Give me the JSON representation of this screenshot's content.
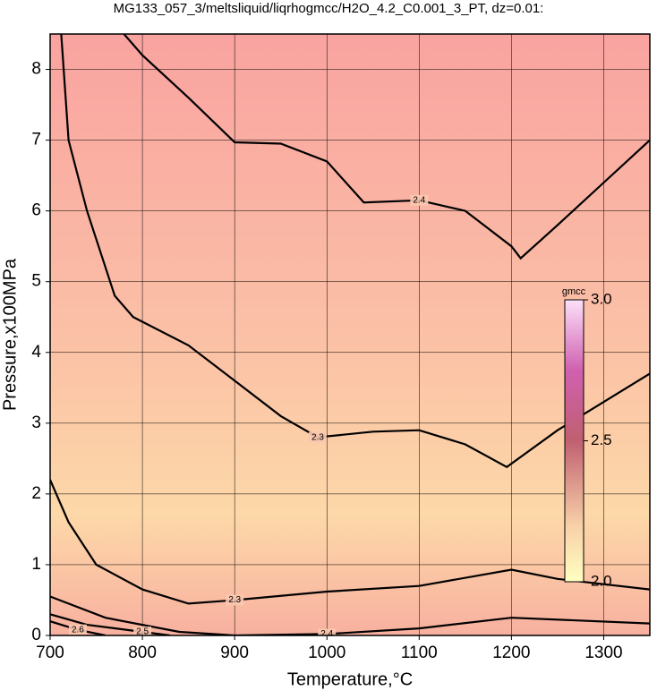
{
  "chart_data": {
    "type": "contour",
    "title": "MG133_057_3/meltsliquid/liqrhogmcc/H2O_4.2_C0.001_3_PT, dz=0.01:",
    "x_label": "Temperature,°C",
    "y_label": "Pressure,x100MPa",
    "xlim": [
      700,
      1350
    ],
    "ylim": [
      0,
      8.5
    ],
    "xticks": [
      700,
      800,
      900,
      1000,
      1100,
      1200,
      1300
    ],
    "yticks": [
      0,
      1,
      2,
      3,
      4,
      5,
      6,
      7,
      8
    ],
    "grid": true,
    "colorbar": {
      "label": "gmcc",
      "clim": [
        2.0,
        3.0
      ],
      "ticks": [
        {
          "value": 3.0,
          "label": "3.0"
        },
        {
          "value": 2.5,
          "label": "2.5"
        },
        {
          "value": 2.0,
          "label": "2.0"
        }
      ]
    },
    "contours": [
      {
        "level": 2.4,
        "x": [
          780,
          800,
          850,
          900,
          950,
          1000,
          1040,
          1100,
          1150,
          1200,
          1210,
          1250,
          1300,
          1350
        ],
        "y": [
          8.5,
          8.2,
          7.6,
          6.97,
          6.95,
          6.7,
          6.12,
          6.15,
          6.0,
          5.5,
          5.33,
          5.8,
          6.4,
          7.0
        ]
      },
      {
        "level": 2.3,
        "x": [
          712,
          720,
          740,
          770,
          790,
          850,
          900,
          950,
          990,
          1050,
          1100,
          1150,
          1195,
          1250,
          1300,
          1350
        ],
        "y": [
          8.5,
          7.0,
          6.0,
          4.8,
          4.5,
          4.1,
          3.6,
          3.1,
          2.8,
          2.88,
          2.9,
          2.7,
          2.38,
          2.9,
          3.3,
          3.7
        ]
      },
      {
        "level": 2.3,
        "x": [
          700,
          720,
          750,
          800,
          850,
          900,
          1000,
          1100,
          1200,
          1250,
          1350
        ],
        "y": [
          2.2,
          1.6,
          1.0,
          0.65,
          0.45,
          0.5,
          0.62,
          0.7,
          0.93,
          0.8,
          0.65
        ]
      },
      {
        "level": 2.4,
        "x": [
          700,
          760,
          840,
          900,
          1000,
          1100,
          1200,
          1350
        ],
        "y": [
          0.55,
          0.25,
          0.05,
          0.0,
          0.02,
          0.1,
          0.25,
          0.17
        ]
      },
      {
        "level": 2.5,
        "x": [
          700,
          740,
          800,
          830
        ],
        "y": [
          0.3,
          0.15,
          0.05,
          0.0
        ]
      },
      {
        "level": 2.6,
        "x": [
          700,
          730,
          760
        ],
        "y": [
          0.2,
          0.08,
          0.0
        ]
      }
    ]
  }
}
